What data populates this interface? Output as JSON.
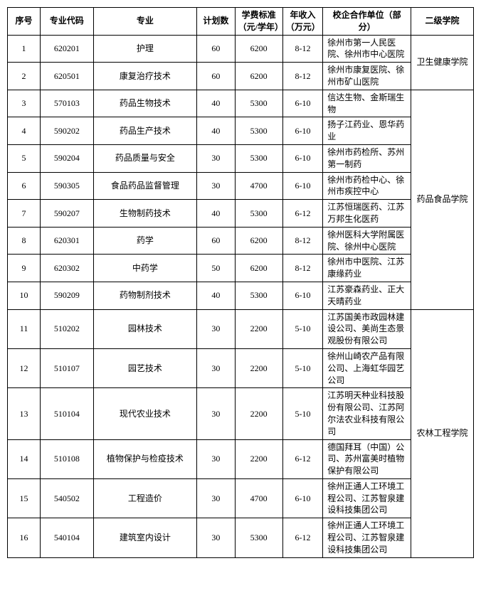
{
  "headers": {
    "idx": "序号",
    "code": "专业代码",
    "major": "专业",
    "plan": "计划数",
    "fee": "学费标准（元/学年）",
    "income": "年收入（万元）",
    "partner": "校企合作单位（部分）",
    "college": "二级学院"
  },
  "colleges": [
    {
      "name": "卫生健康学院",
      "span": 2
    },
    {
      "name": "药品食品学院",
      "span": 8
    },
    {
      "name": "农林工程学院",
      "span": 6
    }
  ],
  "rows": [
    {
      "idx": "1",
      "code": "620201",
      "major": "护理",
      "plan": "60",
      "fee": "6200",
      "income": "8-12",
      "partner": "徐州市第一人民医院、徐州市中心医院"
    },
    {
      "idx": "2",
      "code": "620501",
      "major": "康复治疗技术",
      "plan": "60",
      "fee": "6200",
      "income": "8-12",
      "partner": "徐州市康复医院、徐州市矿山医院"
    },
    {
      "idx": "3",
      "code": "570103",
      "major": "药品生物技术",
      "plan": "40",
      "fee": "5300",
      "income": "6-10",
      "partner": "信达生物、金斯瑞生物"
    },
    {
      "idx": "4",
      "code": "590202",
      "major": "药品生产技术",
      "plan": "40",
      "fee": "5300",
      "income": "6-10",
      "partner": "扬子江药业、恩华药业"
    },
    {
      "idx": "5",
      "code": "590204",
      "major": "药品质量与安全",
      "plan": "30",
      "fee": "5300",
      "income": "6-10",
      "partner": "徐州市药检所、苏州第一制药"
    },
    {
      "idx": "6",
      "code": "590305",
      "major": "食品药品监督管理",
      "plan": "30",
      "fee": "4700",
      "income": "6-10",
      "partner": "徐州市药检中心、徐州市疾控中心"
    },
    {
      "idx": "7",
      "code": "590207",
      "major": "生物制药技术",
      "plan": "40",
      "fee": "5300",
      "income": "6-12",
      "partner": "江苏恒瑞医药、江苏万邦生化医药"
    },
    {
      "idx": "8",
      "code": "620301",
      "major": "药学",
      "plan": "60",
      "fee": "6200",
      "income": "8-12",
      "partner": "徐州医科大学附属医院、徐州中心医院"
    },
    {
      "idx": "9",
      "code": "620302",
      "major": "中药学",
      "plan": "50",
      "fee": "6200",
      "income": "8-12",
      "partner": "徐州市中医院、江苏康缘药业"
    },
    {
      "idx": "10",
      "code": "590209",
      "major": "药物制剂技术",
      "plan": "40",
      "fee": "5300",
      "income": "6-10",
      "partner": "江苏豪森药业、正大天晴药业"
    },
    {
      "idx": "11",
      "code": "510202",
      "major": "园林技术",
      "plan": "30",
      "fee": "2200",
      "income": "5-10",
      "partner": "江苏国美市政园林建设公司、美尚生态景观股份有限公司"
    },
    {
      "idx": "12",
      "code": "510107",
      "major": "园艺技术",
      "plan": "30",
      "fee": "2200",
      "income": "5-10",
      "partner": "徐州山崎农产品有限公司、上海虹华园艺公司"
    },
    {
      "idx": "13",
      "code": "510104",
      "major": "现代农业技术",
      "plan": "30",
      "fee": "2200",
      "income": "5-10",
      "partner": "江苏明天种业科技股份有限公司、江苏阿尔法农业科技有限公司"
    },
    {
      "idx": "14",
      "code": "510108",
      "major": "植物保护与检疫技术",
      "plan": "30",
      "fee": "2200",
      "income": "6-12",
      "partner": "德国拜耳（中国）公司、苏州富美时植物保护有限公司"
    },
    {
      "idx": "15",
      "code": "540502",
      "major": "工程造价",
      "plan": "30",
      "fee": "4700",
      "income": "6-10",
      "partner": "徐州正通人工环境工程公司、江苏智泉建设科技集团公司"
    },
    {
      "idx": "16",
      "code": "540104",
      "major": "建筑室内设计",
      "plan": "30",
      "fee": "5300",
      "income": "6-12",
      "partner": "徐州正通人工环境工程公司、江苏智泉建设科技集团公司"
    }
  ]
}
